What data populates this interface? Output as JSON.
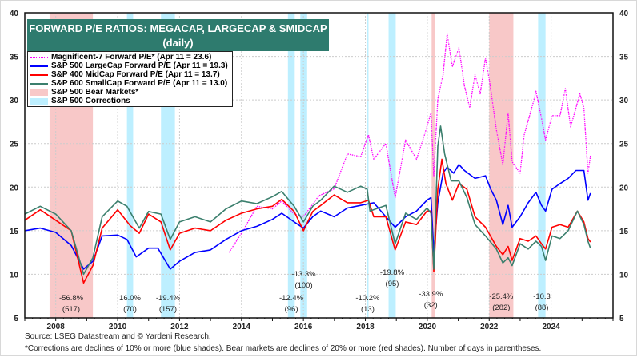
{
  "chart_data": {
    "type": "line",
    "title": "FORWARD P/E RATIOS: MEGACAP, LARGECAP & SMIDCAP",
    "subtitle": "(daily)",
    "xlim": [
      2007,
      2026
    ],
    "ylim": [
      5,
      40
    ],
    "x_ticks": [
      "2008",
      "2010",
      "2012",
      "2014",
      "2016",
      "2018",
      "2020",
      "2022",
      "2024"
    ],
    "y_ticks": [
      "5",
      "10",
      "15",
      "20",
      "25",
      "30",
      "35",
      "40"
    ],
    "grid": true,
    "legend_position": "top-left",
    "series": [
      {
        "name": "Magnificent-7 Forward P/E* (Apr 11 = 23.6)",
        "color": "#ff00ff",
        "style": "dotted",
        "x": [
          2013.6,
          2014.0,
          2014.5,
          2015.0,
          2015.3,
          2015.7,
          2016.0,
          2016.5,
          2016.99,
          2017.42,
          2017.85,
          2018.1,
          2018.27,
          2018.66,
          2018.96,
          2019.3,
          2019.65,
          2019.91,
          2020.12,
          2020.21,
          2020.34,
          2020.51,
          2020.64,
          2020.81,
          2021.02,
          2021.2,
          2021.37,
          2021.54,
          2021.71,
          2021.88,
          2022.01,
          2022.23,
          2022.44,
          2022.61,
          2022.74,
          2023.0,
          2023.13,
          2023.43,
          2023.51,
          2023.69,
          2023.82,
          2024.03,
          2024.29,
          2024.46,
          2024.63,
          2024.93,
          2025.06,
          2025.19,
          2025.27
        ],
        "y": [
          12.5,
          14.7,
          17.8,
          17.5,
          18.4,
          16.9,
          16.6,
          19.0,
          19.8,
          23.8,
          23.5,
          26.0,
          23.2,
          25.0,
          18.8,
          25.4,
          23.2,
          26.0,
          28.5,
          21.3,
          30.1,
          32.9,
          37.6,
          33.8,
          36.0,
          31.6,
          29.1,
          32.9,
          30.7,
          34.8,
          32.2,
          26.6,
          22.6,
          28.5,
          22.9,
          21.6,
          26.0,
          29.8,
          31.0,
          27.9,
          25.4,
          28.2,
          28.2,
          31.3,
          26.9,
          30.7,
          29.1,
          21.6,
          23.6
        ]
      },
      {
        "name": "S&P 500 LargeCap Forward P/E (Apr 11 = 19.3)",
        "color": "#0000ff",
        "style": "solid",
        "x": [
          2007.0,
          2007.5,
          2008.0,
          2008.5,
          2008.9,
          2009.2,
          2009.5,
          2010.0,
          2010.3,
          2010.6,
          2011.0,
          2011.3,
          2011.7,
          2012.0,
          2012.5,
          2013.0,
          2013.5,
          2014.0,
          2014.5,
          2015.0,
          2015.3,
          2015.7,
          2016.0,
          2016.3,
          2016.56,
          2016.99,
          2017.42,
          2017.85,
          2018.27,
          2018.66,
          2018.96,
          2019.3,
          2019.65,
          2019.99,
          2020.12,
          2020.21,
          2020.34,
          2020.51,
          2020.64,
          2020.85,
          2021.02,
          2021.2,
          2021.54,
          2021.88,
          2022.05,
          2022.23,
          2022.44,
          2022.61,
          2022.74,
          2023.0,
          2023.26,
          2023.51,
          2023.69,
          2023.82,
          2024.03,
          2024.29,
          2024.55,
          2024.8,
          2025.06,
          2025.19,
          2025.27
        ],
        "y": [
          15.0,
          15.3,
          14.8,
          13.3,
          10.6,
          11.5,
          14.4,
          14.5,
          14.0,
          12.0,
          13.0,
          13.0,
          10.6,
          11.5,
          12.5,
          12.8,
          14.0,
          15.0,
          15.5,
          16.3,
          17.0,
          16.0,
          15.3,
          16.6,
          17.25,
          16.6,
          17.6,
          17.9,
          18.2,
          16.6,
          15.4,
          16.6,
          17.25,
          18.5,
          18.8,
          12.5,
          18.2,
          21.6,
          22.3,
          21.6,
          22.6,
          21.9,
          21.0,
          21.3,
          19.75,
          18.5,
          15.7,
          17.9,
          15.4,
          16.6,
          18.2,
          19.4,
          17.9,
          17.25,
          19.75,
          20.4,
          21.0,
          21.9,
          21.9,
          18.5,
          19.3
        ]
      },
      {
        "name": "S&P 400 MidCap Forward P/E (Apr 11 = 13.7)",
        "color": "#ff0000",
        "style": "solid",
        "x": [
          2007.0,
          2007.5,
          2008.0,
          2008.5,
          2008.9,
          2009.2,
          2009.5,
          2010.0,
          2010.4,
          2010.7,
          2011.0,
          2011.4,
          2011.7,
          2012.0,
          2012.5,
          2013.0,
          2013.5,
          2014.0,
          2014.5,
          2015.0,
          2015.3,
          2015.7,
          2016.0,
          2016.3,
          2016.56,
          2016.99,
          2017.42,
          2017.85,
          2018.1,
          2018.27,
          2018.66,
          2018.96,
          2019.3,
          2019.65,
          2019.99,
          2020.12,
          2020.21,
          2020.34,
          2020.47,
          2020.6,
          2020.81,
          2021.02,
          2021.28,
          2021.54,
          2021.88,
          2022.23,
          2022.44,
          2022.61,
          2022.74,
          2023.0,
          2023.26,
          2023.51,
          2023.69,
          2023.82,
          2024.03,
          2024.29,
          2024.55,
          2024.85,
          2025.06,
          2025.19,
          2025.27
        ],
        "y": [
          16.2,
          17.4,
          16.2,
          15.0,
          9.0,
          11.0,
          15.3,
          17.4,
          15.6,
          14.7,
          16.9,
          16.0,
          12.8,
          14.7,
          15.3,
          15.0,
          16.2,
          17.0,
          17.5,
          17.8,
          18.6,
          17.2,
          15.0,
          17.2,
          17.9,
          19.1,
          18.2,
          18.2,
          18.5,
          16.6,
          16.6,
          12.8,
          16.0,
          15.7,
          17.25,
          17.25,
          10.3,
          19.75,
          23.2,
          20.4,
          18.5,
          20.4,
          19.75,
          16.6,
          15.4,
          13.2,
          12.25,
          13.2,
          11.6,
          14.1,
          13.8,
          14.4,
          13.5,
          12.9,
          15.4,
          15.7,
          15.4,
          17.25,
          16.0,
          14.1,
          13.7
        ]
      },
      {
        "name": "S&P 600 SmallCap Forward P/E (Apr 11 = 13.0)",
        "color": "#3b7f6d",
        "style": "solid",
        "x": [
          2007.0,
          2007.5,
          2008.0,
          2008.5,
          2008.9,
          2009.2,
          2009.5,
          2010.0,
          2010.3,
          2010.7,
          2011.0,
          2011.4,
          2011.7,
          2012.0,
          2012.5,
          2013.0,
          2013.5,
          2014.0,
          2014.5,
          2015.0,
          2015.3,
          2015.7,
          2016.0,
          2016.3,
          2016.56,
          2016.99,
          2017.42,
          2017.85,
          2018.06,
          2018.15,
          2018.66,
          2018.96,
          2019.3,
          2019.65,
          2019.99,
          2020.12,
          2020.21,
          2020.34,
          2020.43,
          2020.56,
          2020.77,
          2021.02,
          2021.28,
          2021.54,
          2021.88,
          2022.23,
          2022.44,
          2022.61,
          2022.74,
          2023.0,
          2023.26,
          2023.51,
          2023.69,
          2023.82,
          2024.03,
          2024.29,
          2024.55,
          2024.85,
          2025.06,
          2025.19,
          2025.27
        ],
        "y": [
          16.9,
          17.8,
          16.9,
          15.0,
          10.0,
          11.9,
          16.6,
          18.4,
          17.8,
          15.3,
          17.2,
          16.9,
          14.0,
          16.0,
          16.6,
          16.0,
          17.5,
          18.4,
          18.1,
          18.9,
          19.5,
          17.8,
          16.0,
          17.8,
          18.5,
          20.1,
          19.4,
          20.1,
          19.75,
          17.25,
          17.9,
          13.5,
          17.0,
          16.3,
          17.6,
          17.0,
          10.6,
          24.7,
          27.0,
          23.8,
          20.7,
          20.7,
          18.8,
          15.7,
          14.4,
          12.9,
          11.3,
          11.9,
          11.0,
          13.5,
          12.9,
          13.8,
          13.2,
          11.6,
          14.4,
          14.1,
          15.0,
          17.25,
          15.7,
          13.8,
          13.0
        ]
      }
    ],
    "shaded_periods": [
      {
        "type": "bear",
        "start": 2007.8,
        "end": 2009.2,
        "label": "-56.8%",
        "days": "(517)"
      },
      {
        "type": "correction",
        "start": 2010.3,
        "end": 2010.5,
        "label": "16.0%",
        "days": "(70)"
      },
      {
        "type": "correction",
        "start": 2011.4,
        "end": 2011.85,
        "label": "-19.4%",
        "days": "(157)"
      },
      {
        "type": "correction",
        "start": 2015.5,
        "end": 2015.72,
        "label": "-12.4%",
        "days": "(96)"
      },
      {
        "type": "correction",
        "start": 2015.9,
        "end": 2016.12,
        "label": "-13.3%",
        "days": "(100)"
      },
      {
        "type": "correction",
        "start": 2018.05,
        "end": 2018.1,
        "label": "-10.2%",
        "days": "(13)"
      },
      {
        "type": "correction",
        "start": 2018.75,
        "end": 2018.98,
        "label": "-19.8%",
        "days": "(95)"
      },
      {
        "type": "bear",
        "start": 2020.14,
        "end": 2020.24,
        "label": "-33.9%",
        "days": "(32)"
      },
      {
        "type": "bear",
        "start": 2022.0,
        "end": 2022.78,
        "label": "-25.4%",
        "days": "(282)"
      },
      {
        "type": "correction",
        "start": 2023.58,
        "end": 2023.82,
        "label": "-10.3",
        "days": "(88)"
      }
    ],
    "colors": {
      "bear": "#f8c8c8",
      "correction": "#bdefff",
      "title_bg": "#2e7b6e"
    }
  },
  "legend": {
    "bear_label": "S&P 500 Bear Markets*",
    "correction_label": "S&P 500 Corrections"
  },
  "footer": {
    "source": "Source: LSEG Datastream and © Yardeni Research.",
    "note": "*Corrections are declines of 10% or more (blue shades). Bear markets are declines of 20% or more (red shades). Number of days in parentheses."
  }
}
